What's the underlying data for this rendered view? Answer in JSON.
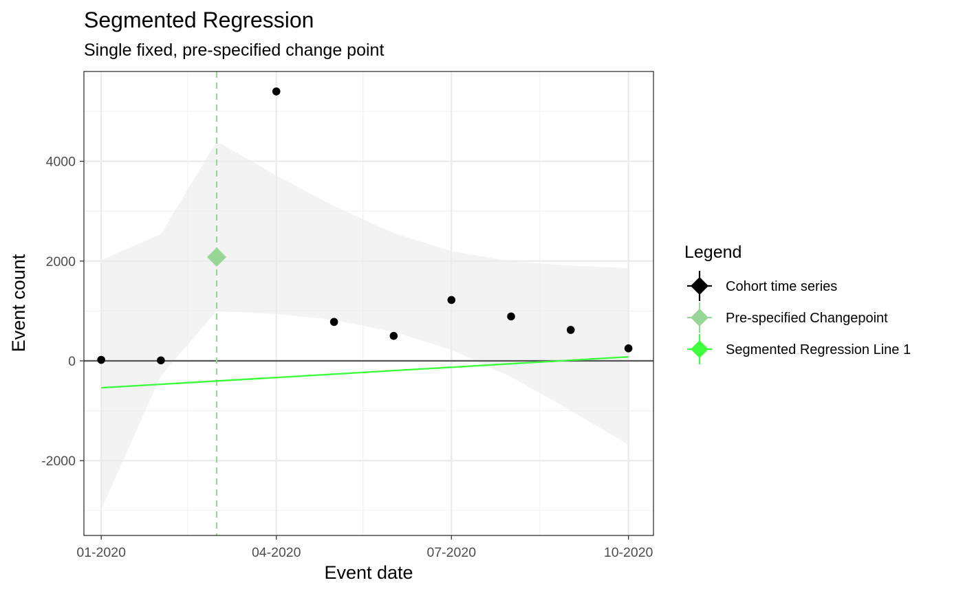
{
  "chart_data": {
    "type": "scatter",
    "title": "Segmented Regression",
    "subtitle": "Single fixed, pre-specified change point",
    "xlabel": "Event date",
    "ylabel": "Event count",
    "x_axis": {
      "scale": "date",
      "range": [
        "2019-12-23",
        "2020-10-14"
      ],
      "ticks": [
        {
          "value": "2020-01-01",
          "label": "01-2020"
        },
        {
          "value": "2020-04-01",
          "label": "04-2020"
        },
        {
          "value": "2020-07-01",
          "label": "07-2020"
        },
        {
          "value": "2020-10-01",
          "label": "10-2020"
        }
      ],
      "minor_breaks": [
        "2020-02-15",
        "2020-05-16",
        "2020-08-16"
      ]
    },
    "y_axis": {
      "range": [
        -3500,
        5800
      ],
      "ticks": [
        {
          "value": -2000,
          "label": "-2000"
        },
        {
          "value": 0,
          "label": "0"
        },
        {
          "value": 2000,
          "label": "2000"
        },
        {
          "value": 4000,
          "label": "4000"
        }
      ],
      "minor_breaks": [
        -3000,
        -1000,
        1000,
        3000,
        5000
      ]
    },
    "grid": true,
    "zero_line": true,
    "theme": "bw",
    "legend": {
      "title": "Legend",
      "position": "right",
      "entries": [
        {
          "label": "Cohort time series",
          "color": "#000000",
          "marker": "point"
        },
        {
          "label": "Pre-specified Changepoint",
          "color": "#98d698",
          "marker": "diamond"
        },
        {
          "label": "Segmented Regression Line 1",
          "color": "#3dff3d",
          "marker": "line"
        }
      ]
    },
    "series": [
      {
        "name": "Cohort time series",
        "type": "scatter",
        "color": "#000000",
        "points": [
          {
            "x": "2020-01-01",
            "y": 20
          },
          {
            "x": "2020-02-01",
            "y": 10
          },
          {
            "x": "2020-04-01",
            "y": 5400
          },
          {
            "x": "2020-05-01",
            "y": 780
          },
          {
            "x": "2020-06-01",
            "y": 500
          },
          {
            "x": "2020-07-01",
            "y": 1220
          },
          {
            "x": "2020-08-01",
            "y": 890
          },
          {
            "x": "2020-09-01",
            "y": 620
          },
          {
            "x": "2020-10-01",
            "y": 250
          }
        ]
      },
      {
        "name": "Pre-specified Changepoint",
        "type": "vline-with-marker",
        "color": "#98d698",
        "x": "2020-03-01",
        "y": 2080
      },
      {
        "name": "Segmented Regression Line 1",
        "type": "line",
        "color": "#3dff3d",
        "points": [
          {
            "x": "2020-01-01",
            "y": -540
          },
          {
            "x": "2020-10-01",
            "y": 80
          }
        ]
      }
    ],
    "confidence_band": {
      "color": "#ebebeb",
      "opacity": 0.6,
      "points": [
        {
          "x": "2020-01-01",
          "upper": 2020,
          "lower": -2980
        },
        {
          "x": "2020-02-01",
          "upper": 2540,
          "lower": -300
        },
        {
          "x": "2020-03-01",
          "upper": 4400,
          "lower": 1000
        },
        {
          "x": "2020-04-01",
          "upper": 3720,
          "lower": 940
        },
        {
          "x": "2020-05-01",
          "upper": 3100,
          "lower": 820
        },
        {
          "x": "2020-06-01",
          "upper": 2560,
          "lower": 580
        },
        {
          "x": "2020-07-01",
          "upper": 2200,
          "lower": 220
        },
        {
          "x": "2020-08-01",
          "upper": 1990,
          "lower": -320
        },
        {
          "x": "2020-09-01",
          "upper": 1910,
          "lower": -1000
        },
        {
          "x": "2020-10-01",
          "upper": 1860,
          "lower": -1680
        }
      ]
    }
  }
}
